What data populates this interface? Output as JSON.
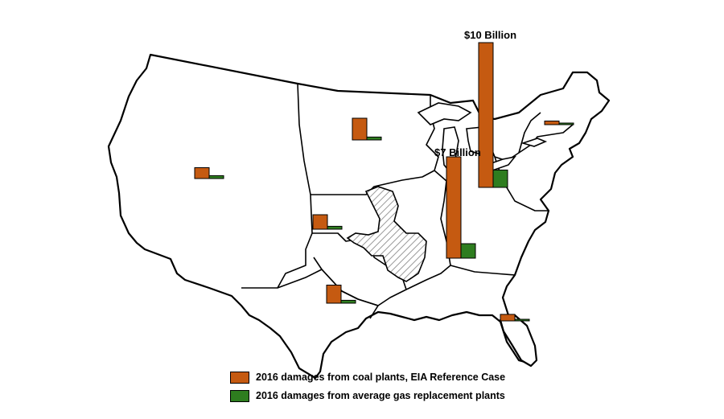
{
  "colors": {
    "coal": "#c55a11",
    "gas": "#2e7d1f",
    "hatch": "#9a9a9a"
  },
  "annotations": {
    "big_bar_label": "$10 Billion",
    "mid_bar_label": "$7 Billion"
  },
  "legend": {
    "items": [
      {
        "key": "coal",
        "label": "2016 damages from coal plants, EIA Reference Case"
      },
      {
        "key": "gas",
        "label": "2016 damages from average gas replacement plants"
      }
    ]
  },
  "chart_data": {
    "type": "bar",
    "unit": "billion USD",
    "series": [
      {
        "name": "2016 damages from coal plants, EIA Reference Case",
        "values": [
          0.75,
          1.5,
          1.0,
          1.25,
          10.0,
          7.0,
          0.25,
          0.45
        ]
      },
      {
        "name": "2016 damages from average gas replacement plants",
        "values": [
          0.2,
          0.2,
          0.2,
          0.2,
          1.2,
          1.0,
          0.05,
          0.1
        ]
      }
    ],
    "scale_references": {
      "$10 Billion": 10.0,
      "$7 Billion": 7.0
    }
  }
}
